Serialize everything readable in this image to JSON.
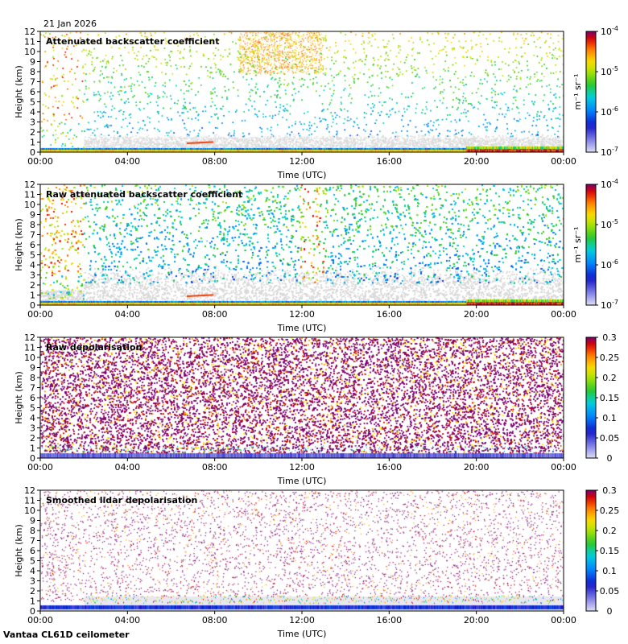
{
  "header": {
    "date": "21 Jan 2026"
  },
  "footer": {
    "site": "Vantaa CL61D ceilometer"
  },
  "chart_data": [
    {
      "type": "heatmap",
      "title": "Attenuated backscatter coefficient",
      "xlabel": "Time (UTC)",
      "ylabel": "Height (km)",
      "xticks": [
        "00:00",
        "04:00",
        "08:00",
        "12:00",
        "16:00",
        "20:00",
        "00:00"
      ],
      "yticks": [
        "0",
        "1",
        "2",
        "3",
        "4",
        "5",
        "6",
        "7",
        "8",
        "9",
        "10",
        "11",
        "12"
      ],
      "ylim": [
        0,
        12
      ],
      "xlim_hours": [
        0,
        24
      ],
      "colorbar": {
        "scale": "log",
        "range": [
          1e-07,
          0.0001
        ],
        "ticks": [
          "10",
          "10",
          "10",
          "10"
        ],
        "tick_exponents": [
          "-7",
          "-6",
          "-5",
          "-4"
        ],
        "units": "m⁻¹ sr⁻¹"
      }
    },
    {
      "type": "heatmap",
      "title": "Raw attenuated backscatter coefficient",
      "xlabel": "Time (UTC)",
      "ylabel": "Height (km)",
      "xticks": [
        "00:00",
        "04:00",
        "08:00",
        "12:00",
        "16:00",
        "20:00",
        "00:00"
      ],
      "yticks": [
        "0",
        "1",
        "2",
        "3",
        "4",
        "5",
        "6",
        "7",
        "8",
        "9",
        "10",
        "11",
        "12"
      ],
      "ylim": [
        0,
        12
      ],
      "xlim_hours": [
        0,
        24
      ],
      "colorbar": {
        "scale": "log",
        "range": [
          1e-07,
          0.0001
        ],
        "ticks": [
          "10",
          "10",
          "10",
          "10"
        ],
        "tick_exponents": [
          "-7",
          "-6",
          "-5",
          "-4"
        ],
        "units": "m⁻¹ sr⁻¹"
      }
    },
    {
      "type": "heatmap",
      "title": "Raw depolarisation",
      "xlabel": "Time (UTC)",
      "ylabel": "Height (km)",
      "xticks": [
        "00:00",
        "04:00",
        "08:00",
        "12:00",
        "16:00",
        "20:00",
        "00:00"
      ],
      "yticks": [
        "0",
        "1",
        "2",
        "3",
        "4",
        "5",
        "6",
        "7",
        "8",
        "9",
        "10",
        "11",
        "12"
      ],
      "ylim": [
        0,
        12
      ],
      "xlim_hours": [
        0,
        24
      ],
      "colorbar": {
        "scale": "linear",
        "range": [
          0,
          0.3
        ],
        "ticks": [
          "0",
          "0.05",
          "0.1",
          "0.15",
          "0.2",
          "0.25",
          "0.3"
        ],
        "units": ""
      }
    },
    {
      "type": "heatmap",
      "title": "Smoothed lidar depolarisation",
      "xlabel": "Time (UTC)",
      "ylabel": "Height (km)",
      "xticks": [
        "00:00",
        "04:00",
        "08:00",
        "12:00",
        "16:00",
        "20:00",
        "00:00"
      ],
      "yticks": [
        "0",
        "1",
        "2",
        "3",
        "4",
        "5",
        "6",
        "7",
        "8",
        "9",
        "10",
        "11",
        "12"
      ],
      "ylim": [
        0,
        12
      ],
      "xlim_hours": [
        0,
        24
      ],
      "colorbar": {
        "scale": "linear",
        "range": [
          0,
          0.3
        ],
        "ticks": [
          "0",
          "0.05",
          "0.1",
          "0.15",
          "0.2",
          "0.25",
          "0.3"
        ],
        "units": ""
      }
    }
  ]
}
